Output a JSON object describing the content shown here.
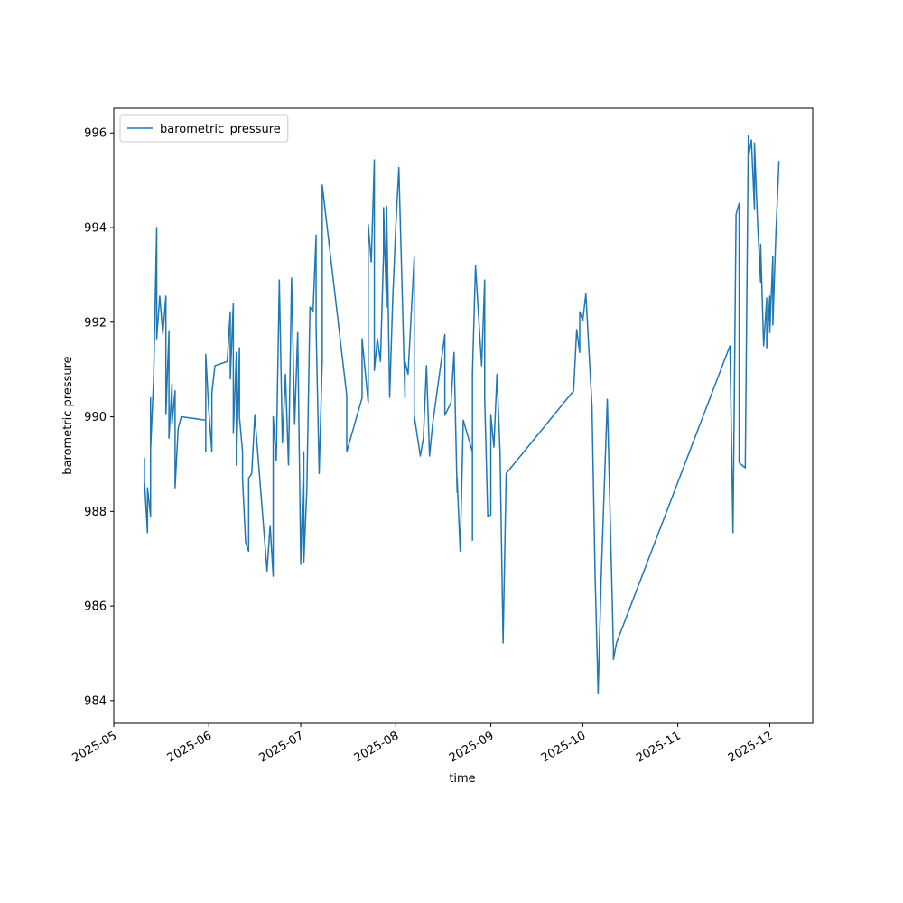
{
  "chart_data": {
    "type": "line",
    "xlabel": "time",
    "ylabel": "barometric pressure",
    "x": [
      "2025-05-11",
      "2025-05-11",
      "2025-05-12",
      "2025-05-12",
      "2025-05-13",
      "2025-05-13",
      "2025-05-13",
      "2025-05-14",
      "2025-05-15",
      "2025-05-15",
      "2025-05-16",
      "2025-05-17",
      "2025-05-18",
      "2025-05-18",
      "2025-05-19",
      "2025-05-19",
      "2025-05-20",
      "2025-05-20",
      "2025-05-21",
      "2025-05-21",
      "2025-05-22",
      "2025-05-23",
      "2025-05-31",
      "2025-05-31",
      "2025-05-31",
      "2025-06-01",
      "2025-06-02",
      "2025-06-02",
      "2025-06-03",
      "2025-06-07",
      "2025-06-08",
      "2025-06-08",
      "2025-06-09",
      "2025-06-09",
      "2025-06-10",
      "2025-06-10",
      "2025-06-11",
      "2025-06-11",
      "2025-06-12",
      "2025-06-12",
      "2025-06-13",
      "2025-06-14",
      "2025-06-14",
      "2025-06-15",
      "2025-06-16",
      "2025-06-20",
      "2025-06-21",
      "2025-06-22",
      "2025-06-22",
      "2025-06-23",
      "2025-06-24",
      "2025-06-25",
      "2025-06-26",
      "2025-06-27",
      "2025-06-28",
      "2025-06-29",
      "2025-06-30",
      "2025-07-01",
      "2025-07-02",
      "2025-07-02",
      "2025-07-03",
      "2025-07-04",
      "2025-07-05",
      "2025-07-06",
      "2025-07-06",
      "2025-07-07",
      "2025-07-08",
      "2025-07-08",
      "2025-07-16",
      "2025-07-16",
      "2025-07-21",
      "2025-07-21",
      "2025-07-23",
      "2025-07-23",
      "2025-07-24",
      "2025-07-25",
      "2025-07-25",
      "2025-07-26",
      "2025-07-27",
      "2025-07-28",
      "2025-07-28",
      "2025-07-29",
      "2025-07-29",
      "2025-07-30",
      "2025-07-31",
      "2025-08-01",
      "2025-08-02",
      "2025-08-04",
      "2025-08-04",
      "2025-08-05",
      "2025-08-07",
      "2025-08-07",
      "2025-08-09",
      "2025-08-10",
      "2025-08-11",
      "2025-08-12",
      "2025-08-13",
      "2025-08-17",
      "2025-08-17",
      "2025-08-19",
      "2025-08-20",
      "2025-08-21",
      "2025-08-21",
      "2025-08-22",
      "2025-08-23",
      "2025-08-26",
      "2025-08-26",
      "2025-08-26",
      "2025-08-27",
      "2025-08-29",
      "2025-08-30",
      "2025-08-30",
      "2025-08-31",
      "2025-09-01",
      "2025-09-01",
      "2025-09-02",
      "2025-09-03",
      "2025-09-04",
      "2025-09-05",
      "2025-09-06",
      "2025-09-28",
      "2025-09-29",
      "2025-09-30",
      "2025-09-30",
      "2025-10-01",
      "2025-10-02",
      "2025-10-04",
      "2025-10-05",
      "2025-10-06",
      "2025-10-07",
      "2025-10-09",
      "2025-10-11",
      "2025-10-11",
      "2025-10-12",
      "2025-11-18",
      "2025-11-19",
      "2025-11-20",
      "2025-11-21",
      "2025-11-21",
      "2025-11-23",
      "2025-11-24",
      "2025-11-24",
      "2025-11-25",
      "2025-11-26",
      "2025-11-26",
      "2025-11-27",
      "2025-11-28",
      "2025-11-28",
      "2025-11-29",
      "2025-11-30",
      "2025-11-30",
      "2025-12-01",
      "2025-12-01",
      "2025-12-02",
      "2025-12-02",
      "2025-12-03",
      "2025-12-04"
    ],
    "series": [
      {
        "name": "barometric_pressure",
        "color": "#1f77b4",
        "values": [
          989.13,
          988.65,
          987.55,
          988.5,
          987.9,
          990.4,
          989.3,
          990.8,
          994.0,
          991.65,
          992.55,
          991.75,
          992.55,
          990.05,
          991.8,
          989.55,
          990.7,
          989.85,
          990.55,
          988.5,
          989.75,
          990.0,
          989.93,
          989.26,
          991.32,
          990.12,
          989.26,
          990.5,
          991.08,
          991.17,
          992.22,
          990.8,
          992.4,
          989.65,
          991.36,
          988.98,
          991.46,
          990.0,
          989.26,
          988.7,
          987.35,
          987.16,
          988.7,
          988.8,
          990.03,
          986.74,
          987.7,
          986.63,
          990.0,
          989.07,
          992.89,
          989.45,
          990.9,
          988.98,
          992.93,
          989.84,
          991.78,
          986.88,
          989.26,
          986.92,
          988.5,
          992.32,
          992.22,
          993.84,
          991.9,
          988.8,
          991.2,
          994.9,
          990.45,
          989.26,
          990.4,
          991.65,
          990.3,
          994.07,
          993.27,
          995.43,
          990.98,
          991.65,
          991.17,
          993.46,
          994.42,
          992.32,
          994.45,
          990.41,
          992.5,
          994.03,
          995.27,
          990.4,
          991.17,
          990.9,
          993.37,
          990.03,
          989.17,
          989.55,
          991.08,
          989.17,
          989.84,
          991.74,
          990.03,
          990.3,
          991.36,
          988.4,
          988.7,
          987.16,
          989.93,
          989.26,
          987.39,
          990.9,
          993.2,
          991.08,
          992.89,
          990.4,
          987.89,
          987.93,
          990.03,
          989.36,
          990.9,
          989.26,
          985.22,
          988.8,
          990.55,
          991.84,
          991.36,
          992.22,
          992.03,
          992.6,
          990.22,
          986.69,
          984.15,
          986.6,
          990.37,
          985.07,
          984.87,
          985.22,
          991.5,
          987.55,
          994.28,
          994.51,
          989.03,
          988.92,
          995.94,
          995.47,
          995.85,
          994.38,
          995.79,
          994.13,
          992.85,
          993.65,
          991.5,
          992.51,
          991.46,
          992.55,
          991.78,
          993.4,
          991.94,
          993.88,
          995.41
        ]
      }
    ],
    "xlim": [
      "2025-05-01",
      "2025-12-15"
    ],
    "xticks": [
      {
        "value": "2025-05-01",
        "label": "2025-05"
      },
      {
        "value": "2025-06-01",
        "label": "2025-06"
      },
      {
        "value": "2025-07-01",
        "label": "2025-07"
      },
      {
        "value": "2025-08-01",
        "label": "2025-08"
      },
      {
        "value": "2025-09-01",
        "label": "2025-09"
      },
      {
        "value": "2025-10-01",
        "label": "2025-10"
      },
      {
        "value": "2025-11-01",
        "label": "2025-11"
      },
      {
        "value": "2025-12-01",
        "label": "2025-12"
      }
    ],
    "ylim": [
      983.52,
      996.52
    ],
    "yticks": [
      984,
      986,
      988,
      990,
      992,
      994,
      996
    ],
    "legend": "upper left",
    "grid": false
  }
}
